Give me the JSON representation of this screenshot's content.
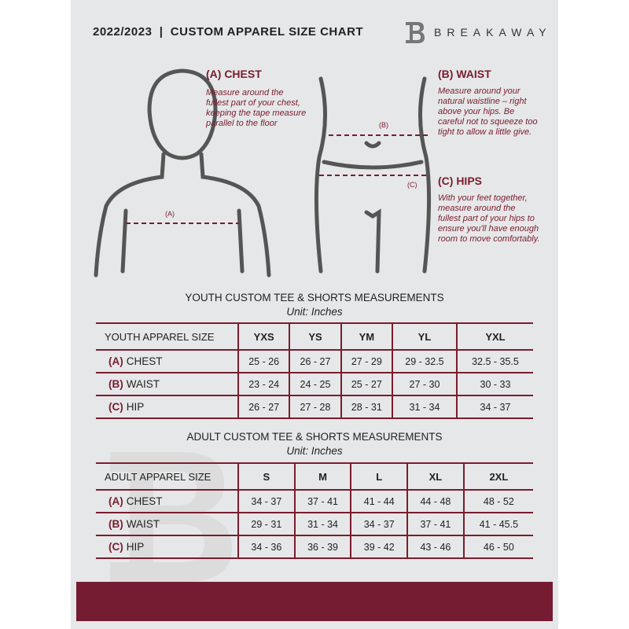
{
  "header": {
    "title": "2022/2023  |  CUSTOM APPAREL SIZE CHART",
    "brand": "BREAKAWAY"
  },
  "measures": {
    "chest": {
      "heading": "(A) CHEST",
      "text": "Measure around the fullest part of your chest, keeping the tape measure parallel to the floor",
      "marker": "(A)"
    },
    "waist": {
      "heading": "(B) WAIST",
      "text": "Measure around your natural waistline – right above your hips. Be careful not to squeeze too tight to allow a little give.",
      "marker": "(B)"
    },
    "hips": {
      "heading": "(C) HIPS",
      "text": "With your feet together, measure around the fullest part of your hips to ensure you'll have enough room to move comfortably.",
      "marker": "(C)"
    }
  },
  "youth": {
    "title": "YOUTH CUSTOM TEE & SHORTS MEASUREMENTS",
    "unit": "Unit: Inches",
    "header": [
      "YOUTH APPAREL SIZE",
      "YXS",
      "YS",
      "YM",
      "YL",
      "YXL"
    ],
    "rows": [
      {
        "code": "(A)",
        "label": "CHEST",
        "values": [
          "25 - 26",
          "26 - 27",
          "27 - 29",
          "29 - 32.5",
          "32.5 - 35.5"
        ]
      },
      {
        "code": "(B)",
        "label": "WAIST",
        "values": [
          "23 - 24",
          "24 - 25",
          "25 - 27",
          "27 - 30",
          "30 - 33"
        ]
      },
      {
        "code": "(C)",
        "label": "HIP",
        "values": [
          "26 - 27",
          "27 - 28",
          "28 - 31",
          "31 - 34",
          "34 - 37"
        ]
      }
    ]
  },
  "adult": {
    "title": "ADULT CUSTOM TEE & SHORTS MEASUREMENTS",
    "unit": "Unit: Inches",
    "header": [
      "ADULT APPAREL SIZE",
      "S",
      "M",
      "L",
      "XL",
      "2XL"
    ],
    "rows": [
      {
        "code": "(A)",
        "label": "CHEST",
        "values": [
          "34 - 37",
          "37 - 41",
          "41 - 44",
          "44 - 48",
          "48 - 52"
        ]
      },
      {
        "code": "(B)",
        "label": "WAIST",
        "values": [
          "29 - 31",
          "31 - 34",
          "34 - 37",
          "37 - 41",
          "41 - 45.5"
        ]
      },
      {
        "code": "(C)",
        "label": "HIP",
        "values": [
          "34 - 36",
          "36 - 39",
          "39 - 42",
          "43 - 46",
          "46 - 50"
        ]
      }
    ]
  },
  "colors": {
    "accent": "#751c32",
    "background": "#e6e7e8"
  }
}
